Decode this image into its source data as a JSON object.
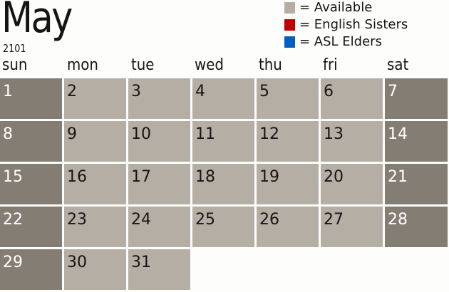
{
  "header": {
    "month": "May",
    "year": "2101"
  },
  "legend": [
    {
      "label": "= Available",
      "color": "#b5aea5"
    },
    {
      "label": "= English Sisters",
      "color": "#c00000"
    },
    {
      "label": "= ASL Elders",
      "color": "#0060c0"
    }
  ],
  "weekdays": [
    "sun",
    "mon",
    "tue",
    "wed",
    "thu",
    "fri",
    "sat"
  ],
  "colors": {
    "weekday_available": "#b5aea5",
    "weekend": "#847d74"
  },
  "calendar": {
    "first_weekday_index": 0,
    "days": [
      {
        "day": "1",
        "status": "weekend"
      },
      {
        "day": "2",
        "status": "available"
      },
      {
        "day": "3",
        "status": "available"
      },
      {
        "day": "4",
        "status": "available"
      },
      {
        "day": "5",
        "status": "available"
      },
      {
        "day": "6",
        "status": "available"
      },
      {
        "day": "7",
        "status": "weekend"
      },
      {
        "day": "8",
        "status": "weekend"
      },
      {
        "day": "9",
        "status": "available"
      },
      {
        "day": "10",
        "status": "available"
      },
      {
        "day": "11",
        "status": "available"
      },
      {
        "day": "12",
        "status": "available"
      },
      {
        "day": "13",
        "status": "available"
      },
      {
        "day": "14",
        "status": "weekend"
      },
      {
        "day": "15",
        "status": "weekend"
      },
      {
        "day": "16",
        "status": "available"
      },
      {
        "day": "17",
        "status": "available"
      },
      {
        "day": "18",
        "status": "available"
      },
      {
        "day": "19",
        "status": "available"
      },
      {
        "day": "20",
        "status": "available"
      },
      {
        "day": "21",
        "status": "weekend"
      },
      {
        "day": "22",
        "status": "weekend"
      },
      {
        "day": "23",
        "status": "available"
      },
      {
        "day": "24",
        "status": "available"
      },
      {
        "day": "25",
        "status": "available"
      },
      {
        "day": "26",
        "status": "available"
      },
      {
        "day": "27",
        "status": "available"
      },
      {
        "day": "28",
        "status": "weekend"
      },
      {
        "day": "29",
        "status": "weekend"
      },
      {
        "day": "30",
        "status": "available"
      },
      {
        "day": "31",
        "status": "available"
      }
    ]
  }
}
